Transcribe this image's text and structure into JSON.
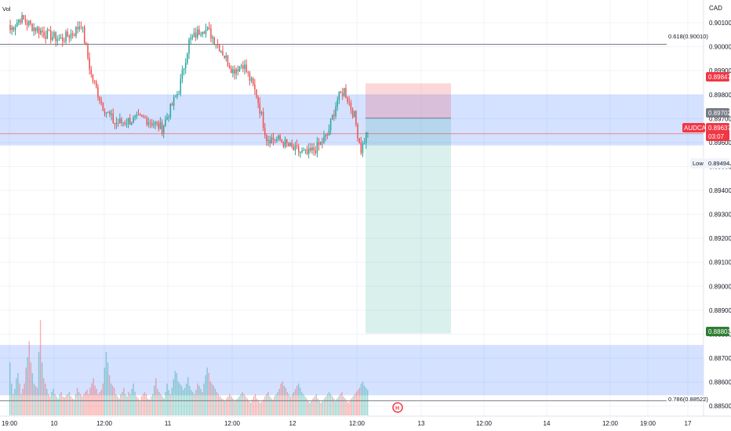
{
  "chart_data": {
    "type": "candlestick",
    "symbol": "AUDCAD",
    "currency": "CAD",
    "volume_label": "Vol",
    "y_axis": {
      "ylim": [
        0.88458,
        0.90195
      ],
      "ticks": [
        "0.90100",
        "0.90000",
        "0.89900",
        "0.89800",
        "0.89700",
        "0.89600",
        "0.89500",
        "0.89400",
        "0.89300",
        "0.89200",
        "0.89100",
        "0.89000",
        "0.88900",
        "0.88800",
        "0.88700",
        "0.88600",
        "0.88500"
      ]
    },
    "x_axis": {
      "tick_labels": [
        "19:00",
        "10",
        "12:00",
        "11",
        "12:00",
        "12",
        "12:00",
        "13",
        "12:00",
        "14",
        "12:00",
        "19:00",
        "17"
      ]
    },
    "price_levels": {
      "fib_618": {
        "label": "0.618(0.90010)",
        "value": 0.9001
      },
      "fib_786": {
        "label": "0.786(0.88522)",
        "value": 0.88522
      },
      "stop": "0.89847",
      "entry": "0.89702",
      "last": {
        "symbol": "AUDCAD",
        "price": "0.89637",
        "countdown": "03:07"
      },
      "low": {
        "label": "Low",
        "price": "0.89494"
      },
      "target": "0.88803"
    },
    "zones": [
      {
        "name": "supply-zone",
        "from": 0.89588,
        "to": 0.898
      },
      {
        "name": "lower-zone",
        "from": 0.88545,
        "to": 0.88755
      }
    ],
    "position": {
      "type": "short",
      "entry": 0.89702,
      "stop": 0.89847,
      "target": 0.88803
    },
    "anchors": [
      [
        0,
        0.9007
      ],
      [
        6,
        0.9012
      ],
      [
        14,
        0.9008
      ],
      [
        22,
        0.9005
      ],
      [
        30,
        0.9003
      ],
      [
        38,
        0.9006
      ],
      [
        42,
        0.901
      ],
      [
        48,
        0.8988
      ],
      [
        55,
        0.8975
      ],
      [
        62,
        0.8968
      ],
      [
        70,
        0.8969
      ],
      [
        80,
        0.897
      ],
      [
        90,
        0.8966
      ],
      [
        100,
        0.8982
      ],
      [
        106,
        0.9002
      ],
      [
        114,
        0.9008
      ],
      [
        118,
        0.9006
      ],
      [
        124,
        0.9
      ],
      [
        132,
        0.899
      ],
      [
        138,
        0.8993
      ],
      [
        146,
        0.898
      ],
      [
        152,
        0.8962
      ],
      [
        160,
        0.8961
      ],
      [
        168,
        0.8957
      ],
      [
        176,
        0.8955
      ],
      [
        182,
        0.8958
      ],
      [
        188,
        0.8963
      ],
      [
        194,
        0.8978
      ],
      [
        198,
        0.8982
      ],
      [
        204,
        0.8971
      ],
      [
        208,
        0.8957
      ],
      [
        212,
        0.8965
      ]
    ],
    "volumes": [
      0.5,
      0.3,
      0.2,
      0.25,
      0.35,
      0.4,
      0.3,
      0.2,
      0.25,
      0.3,
      0.45,
      0.55,
      0.7,
      0.5,
      0.4,
      0.3,
      0.28,
      0.26,
      0.6,
      0.9,
      0.5,
      0.35,
      0.3,
      0.25,
      0.2,
      0.18,
      0.22,
      0.25,
      0.2,
      0.18,
      0.16,
      0.2,
      0.22,
      0.18,
      0.17,
      0.19,
      0.2,
      0.22,
      0.18,
      0.16,
      0.15,
      0.2,
      0.26,
      0.22,
      0.2,
      0.18,
      0.2,
      0.22,
      0.24,
      0.2,
      0.26,
      0.3,
      0.35,
      0.28,
      0.25,
      0.2,
      0.22,
      0.24,
      0.3,
      0.45,
      0.6,
      0.5,
      0.38,
      0.3,
      0.28,
      0.26,
      0.2,
      0.18,
      0.16,
      0.2,
      0.22,
      0.26,
      0.2,
      0.18,
      0.22,
      0.2,
      0.25,
      0.3,
      0.22,
      0.18,
      0.16,
      0.14,
      0.18,
      0.2,
      0.22,
      0.2,
      0.16,
      0.15,
      0.18,
      0.2,
      0.28,
      0.35,
      0.25,
      0.22,
      0.2,
      0.18,
      0.16,
      0.22,
      0.3,
      0.24,
      0.2,
      0.26,
      0.34,
      0.42,
      0.4,
      0.32,
      0.3,
      0.28,
      0.24,
      0.26,
      0.3,
      0.36,
      0.28,
      0.24,
      0.22,
      0.2,
      0.24,
      0.3,
      0.28,
      0.25,
      0.22,
      0.3,
      0.38,
      0.45,
      0.4,
      0.32,
      0.3,
      0.28,
      0.25,
      0.22,
      0.2,
      0.18,
      0.16,
      0.15,
      0.14,
      0.16,
      0.18,
      0.2,
      0.18,
      0.16,
      0.14,
      0.15,
      0.16,
      0.18,
      0.2,
      0.22,
      0.2,
      0.18,
      0.16,
      0.14,
      0.12,
      0.15,
      0.18,
      0.2,
      0.16,
      0.14,
      0.12,
      0.13,
      0.15,
      0.18,
      0.2,
      0.22,
      0.18,
      0.16,
      0.15,
      0.18,
      0.2,
      0.22,
      0.25,
      0.3,
      0.32,
      0.28,
      0.26,
      0.22,
      0.2,
      0.18,
      0.2,
      0.22,
      0.25,
      0.28,
      0.3,
      0.26,
      0.22,
      0.2,
      0.18,
      0.16,
      0.14,
      0.12,
      0.14,
      0.16,
      0.18,
      0.2,
      0.16,
      0.14,
      0.12,
      0.14,
      0.16,
      0.18,
      0.2,
      0.22,
      0.2,
      0.18,
      0.16,
      0.14,
      0.16,
      0.18,
      0.2,
      0.22,
      0.18,
      0.16,
      0.14,
      0.12,
      0.14,
      0.16,
      0.18,
      0.2,
      0.22,
      0.24,
      0.26,
      0.3,
      0.32,
      0.28,
      0.26,
      0.24
    ],
    "colors": {
      "up": "#26a69a",
      "down": "#ef5350",
      "zone": "#3c78ff",
      "fib_line": "#787b86",
      "last_line": "#ef5350",
      "stop_badge": "#f23645",
      "entry_badge": "#787b86",
      "target_badge": "#2e7d32"
    },
    "grid": true
  }
}
